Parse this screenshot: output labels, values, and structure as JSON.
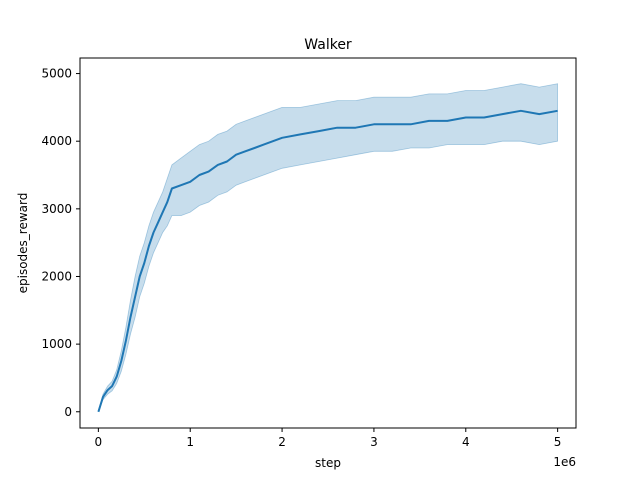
{
  "chart_data": {
    "type": "line",
    "title": "Walker",
    "xlabel": "step",
    "ylabel": "episodes_reward",
    "x_offset_text": "1e6",
    "x_multiplier": 1000000,
    "xlim": [
      -200000,
      5200000
    ],
    "ylim": [
      -240,
      5230
    ],
    "xticks": [
      0,
      1000000,
      2000000,
      3000000,
      4000000,
      5000000
    ],
    "xtick_labels": [
      "0",
      "1",
      "2",
      "3",
      "4",
      "5"
    ],
    "yticks": [
      0,
      1000,
      2000,
      3000,
      4000,
      5000
    ],
    "ytick_labels": [
      "0",
      "1000",
      "2000",
      "3000",
      "4000",
      "5000"
    ],
    "grid": false,
    "legend": "none",
    "line_color": "#1f77b4",
    "band_color": "#1f77b4",
    "band_opacity": 0.25,
    "series": [
      {
        "x": [
          0,
          50000,
          100000,
          150000,
          200000,
          250000,
          300000,
          350000,
          400000,
          450000,
          500000,
          550000,
          600000,
          650000,
          700000,
          750000,
          800000,
          900000,
          1000000,
          1100000,
          1200000,
          1300000,
          1400000,
          1500000,
          1600000,
          1700000,
          1800000,
          1900000,
          2000000,
          2200000,
          2400000,
          2600000,
          2800000,
          3000000,
          3200000,
          3400000,
          3600000,
          3800000,
          4000000,
          4200000,
          4400000,
          4600000,
          4800000,
          5000000
        ],
        "y": [
          0,
          220,
          320,
          380,
          520,
          750,
          1050,
          1400,
          1700,
          2000,
          2200,
          2450,
          2650,
          2800,
          2950,
          3100,
          3300,
          3350,
          3400,
          3500,
          3550,
          3650,
          3700,
          3800,
          3850,
          3900,
          3950,
          4000,
          4050,
          4100,
          4150,
          4200,
          4200,
          4250,
          4250,
          4250,
          4300,
          4300,
          4350,
          4350,
          4400,
          4450,
          4400,
          4450
        ],
        "lower": [
          0,
          180,
          260,
          310,
          420,
          600,
          850,
          1150,
          1400,
          1700,
          1900,
          2150,
          2350,
          2500,
          2650,
          2750,
          2900,
          2900,
          2950,
          3050,
          3100,
          3200,
          3250,
          3350,
          3400,
          3450,
          3500,
          3550,
          3600,
          3650,
          3700,
          3750,
          3800,
          3850,
          3850,
          3900,
          3900,
          3950,
          3950,
          3950,
          4000,
          4000,
          3950,
          4000
        ],
        "upper": [
          0,
          260,
          380,
          450,
          620,
          900,
          1250,
          1650,
          2000,
          2300,
          2500,
          2750,
          2950,
          3100,
          3250,
          3450,
          3650,
          3750,
          3850,
          3950,
          4000,
          4100,
          4150,
          4250,
          4300,
          4350,
          4400,
          4450,
          4500,
          4500,
          4550,
          4600,
          4600,
          4650,
          4650,
          4650,
          4700,
          4700,
          4750,
          4750,
          4800,
          4850,
          4800,
          4850
        ]
      }
    ]
  }
}
